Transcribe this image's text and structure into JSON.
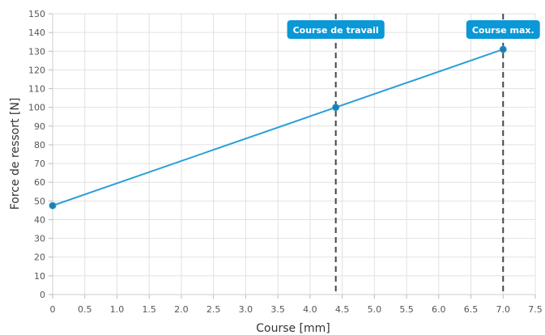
{
  "chart_data": {
    "type": "line",
    "xlabel": "Course [mm]",
    "ylabel": "Force de ressort [N]",
    "xlim": [
      0,
      7.5
    ],
    "ylim": [
      0,
      150
    ],
    "x_ticks": [
      "0",
      "0.5",
      "1.0",
      "1.5",
      "2.0",
      "2.5",
      "3.0",
      "3.5",
      "4.0",
      "4.5",
      "5.0",
      "5.5",
      "6.0",
      "6.5",
      "7.0",
      "7.5"
    ],
    "y_ticks": [
      "0",
      "10",
      "20",
      "30",
      "40",
      "50",
      "60",
      "70",
      "80",
      "90",
      "100",
      "110",
      "120",
      "130",
      "140",
      "150"
    ],
    "grid": true,
    "series": [
      {
        "x": [
          0,
          4.4,
          7.0
        ],
        "y": [
          47.5,
          100,
          131
        ],
        "color": "#2a9fd6"
      }
    ],
    "markers": [
      {
        "x": 4.4,
        "label": "Course de travail"
      },
      {
        "x": 7.0,
        "label": "Course max."
      }
    ],
    "marker_line_color": "#444444",
    "label_bg_color": "#0a98d6"
  }
}
